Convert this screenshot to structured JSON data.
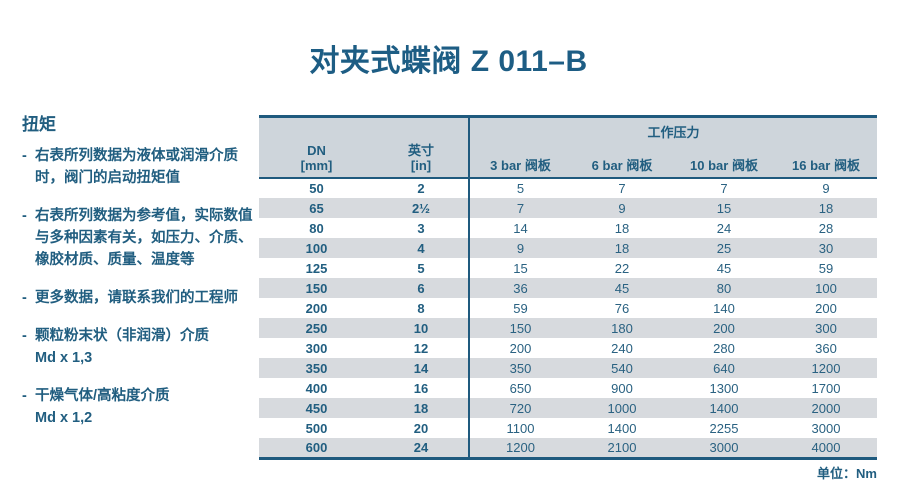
{
  "title": "对夹式蝶阀 Z 011–B",
  "sidebar": {
    "heading": "扭矩",
    "bullets": [
      "右表所列数据为液体或润滑介质时，阀门的启动扭矩值",
      "右表所列数据为参考值，实际数值与多种因素有关，如压力、介质、橡胶材质、质量、温度等",
      "更多数据，请联系我们的工程师",
      "颗粒粉末状（非润滑）介质\nMd x 1,3",
      "干燥气体/高粘度介质\nMd x 1,2"
    ]
  },
  "table": {
    "group_header": "工作压力",
    "columns": [
      "DN\n[mm]",
      "英寸\n[in]",
      "3 bar 阀板",
      "6 bar 阀板",
      "10 bar 阀板",
      "16 bar 阀板"
    ],
    "rows": [
      [
        "50",
        "2",
        "5",
        "7",
        "7",
        "9"
      ],
      [
        "65",
        "2½",
        "7",
        "9",
        "15",
        "18"
      ],
      [
        "80",
        "3",
        "14",
        "18",
        "24",
        "28"
      ],
      [
        "100",
        "4",
        "9",
        "18",
        "25",
        "30"
      ],
      [
        "125",
        "5",
        "15",
        "22",
        "45",
        "59"
      ],
      [
        "150",
        "6",
        "36",
        "45",
        "80",
        "100"
      ],
      [
        "200",
        "8",
        "59",
        "76",
        "140",
        "200"
      ],
      [
        "250",
        "10",
        "150",
        "180",
        "200",
        "300"
      ],
      [
        "300",
        "12",
        "200",
        "240",
        "280",
        "360"
      ],
      [
        "350",
        "14",
        "350",
        "540",
        "640",
        "1200"
      ],
      [
        "400",
        "16",
        "650",
        "900",
        "1300",
        "1700"
      ],
      [
        "450",
        "18",
        "720",
        "1000",
        "1400",
        "2000"
      ],
      [
        "500",
        "20",
        "1100",
        "1400",
        "2255",
        "3000"
      ],
      [
        "600",
        "24",
        "1200",
        "2100",
        "3000",
        "4000"
      ]
    ]
  },
  "unit_label": "单位：Nm",
  "colors": {
    "accent": "#1f5a7e",
    "header_bg": "#ced5db",
    "stripe_bg": "#d7dade",
    "text_blue": "#215e80",
    "title_color": "#1d5d84"
  }
}
